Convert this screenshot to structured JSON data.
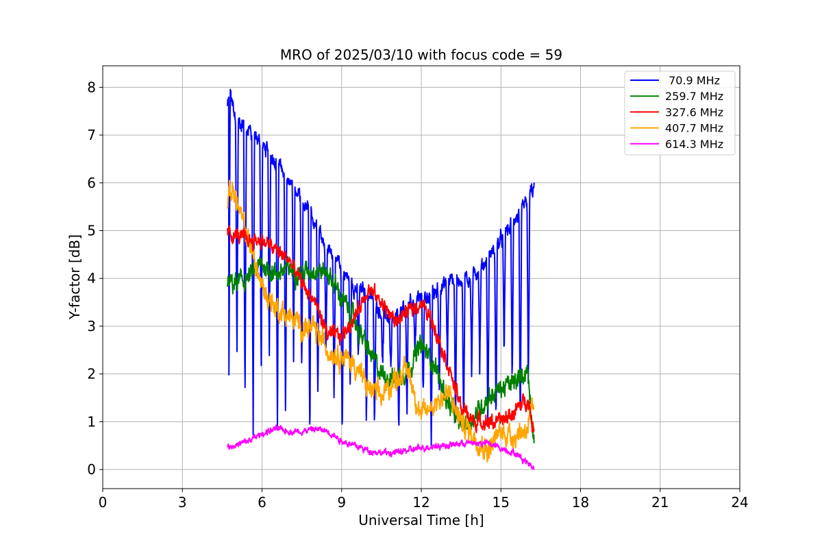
{
  "chart_data": {
    "type": "line",
    "title": "MRO of 2025/03/10 with focus code = 59",
    "xlabel": "Universal Time [h]",
    "ylabel": "Y-factor [dB]",
    "xlim": [
      0,
      24
    ],
    "ylim": [
      -0.4,
      8.45
    ],
    "xticks": [
      0,
      3,
      6,
      9,
      12,
      15,
      18,
      21,
      24
    ],
    "yticks": [
      0,
      1,
      2,
      3,
      4,
      5,
      6,
      7,
      8
    ],
    "grid": true,
    "legend_position": "top-right",
    "series": [
      {
        "name": " 70.9 MHz",
        "color": "#0000ff",
        "noise": 0.12,
        "dips": {
          "start": 4.75,
          "end": 16.1,
          "period": 0.305,
          "width": 0.05
        },
        "x": [
          4.7,
          4.8,
          5.0,
          5.5,
          6.0,
          6.5,
          7.0,
          7.5,
          8.0,
          8.5,
          9.0,
          9.5,
          10.0,
          10.5,
          11.0,
          11.5,
          12.0,
          12.5,
          13.0,
          13.5,
          14.0,
          14.5,
          15.0,
          15.5,
          16.0,
          16.25
        ],
        "y": [
          7.6,
          7.9,
          7.4,
          7.1,
          6.8,
          6.5,
          6.1,
          5.6,
          5.2,
          4.6,
          4.2,
          3.8,
          3.7,
          3.3,
          3.1,
          3.5,
          3.6,
          3.7,
          3.9,
          4.0,
          4.1,
          4.4,
          4.8,
          5.2,
          5.6,
          5.9
        ]
      },
      {
        "name": "259.7 MHz",
        "color": "#008000",
        "noise": 0.16,
        "x": [
          4.7,
          5.0,
          5.5,
          6.0,
          6.5,
          7.0,
          7.5,
          8.0,
          8.5,
          9.0,
          9.5,
          10.0,
          10.5,
          11.0,
          11.5,
          12.0,
          12.5,
          13.0,
          13.5,
          14.0,
          14.5,
          15.0,
          15.5,
          16.0,
          16.25
        ],
        "y": [
          3.9,
          3.9,
          4.0,
          4.3,
          4.1,
          4.2,
          4.1,
          4.2,
          4.1,
          3.6,
          3.1,
          2.5,
          2.0,
          1.9,
          2.1,
          2.6,
          2.2,
          1.4,
          0.9,
          1.1,
          1.5,
          1.7,
          1.8,
          2.1,
          0.6
        ]
      },
      {
        "name": "327.6 MHz",
        "color": "#ff0000",
        "noise": 0.12,
        "x": [
          4.7,
          5.0,
          5.5,
          6.0,
          6.5,
          7.0,
          7.5,
          8.0,
          8.5,
          9.0,
          9.5,
          10.0,
          10.5,
          11.0,
          11.5,
          12.0,
          12.5,
          13.0,
          13.5,
          14.0,
          14.5,
          15.0,
          15.5,
          16.0,
          16.25
        ],
        "y": [
          4.95,
          4.9,
          4.8,
          4.8,
          4.6,
          4.4,
          3.9,
          3.5,
          2.8,
          2.8,
          3.2,
          3.8,
          3.5,
          3.1,
          3.3,
          3.5,
          3.0,
          2.2,
          1.3,
          1.0,
          1.0,
          1.0,
          1.2,
          1.5,
          0.8
        ]
      },
      {
        "name": "407.7 MHz",
        "color": "#ffa500",
        "noise": 0.18,
        "x": [
          4.7,
          4.9,
          5.2,
          5.5,
          6.0,
          6.5,
          7.0,
          7.5,
          8.0,
          8.5,
          9.0,
          9.5,
          10.0,
          10.5,
          11.0,
          11.5,
          12.0,
          12.5,
          13.0,
          13.5,
          14.0,
          14.5,
          15.0,
          15.5,
          16.0,
          16.25
        ],
        "y": [
          5.6,
          5.9,
          5.3,
          4.8,
          3.8,
          3.4,
          3.2,
          3.0,
          2.9,
          2.5,
          2.4,
          2.2,
          1.7,
          1.5,
          1.9,
          2.1,
          1.1,
          1.4,
          1.6,
          1.0,
          0.7,
          0.4,
          0.8,
          0.7,
          0.9,
          1.3
        ]
      },
      {
        "name": "614.3 MHz",
        "color": "#ff00ff",
        "noise": 0.05,
        "x": [
          4.7,
          5.0,
          5.5,
          6.0,
          6.5,
          7.0,
          7.5,
          8.0,
          8.5,
          9.0,
          9.5,
          10.0,
          10.5,
          11.0,
          11.5,
          12.0,
          12.5,
          13.0,
          13.5,
          14.0,
          14.5,
          15.0,
          15.5,
          16.0,
          16.25
        ],
        "y": [
          0.5,
          0.5,
          0.6,
          0.75,
          0.85,
          0.8,
          0.8,
          0.85,
          0.8,
          0.6,
          0.5,
          0.4,
          0.35,
          0.35,
          0.4,
          0.45,
          0.5,
          0.5,
          0.55,
          0.55,
          0.55,
          0.45,
          0.35,
          0.15,
          0.05
        ]
      }
    ]
  }
}
